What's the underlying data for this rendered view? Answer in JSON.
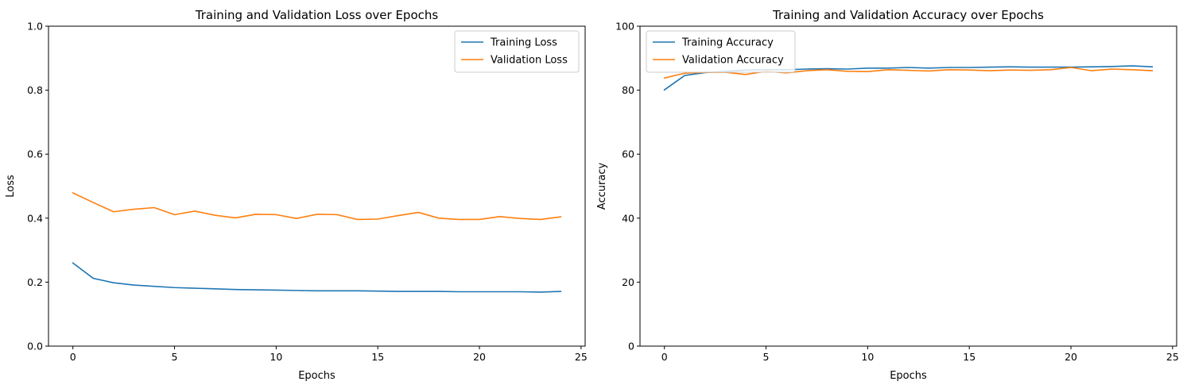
{
  "colors": {
    "series1": "#1f77b4",
    "series2": "#ff7f0e"
  },
  "chart_data": [
    {
      "type": "line",
      "title": "Training and Validation Loss over Epochs",
      "xlabel": "Epochs",
      "ylabel": "Loss",
      "xlim": [
        -1.2,
        25.2
      ],
      "ylim": [
        0,
        1
      ],
      "xticks": [
        0,
        5,
        10,
        15,
        20,
        25
      ],
      "yticks": [
        0.0,
        0.2,
        0.4,
        0.6,
        0.8,
        1.0
      ],
      "ytick_labels": [
        "0.0",
        "0.2",
        "0.4",
        "0.6",
        "0.8",
        "1.0"
      ],
      "legend": "top-right",
      "grid": false,
      "x": [
        0,
        1,
        2,
        3,
        4,
        5,
        6,
        7,
        8,
        9,
        10,
        11,
        12,
        13,
        14,
        15,
        16,
        17,
        18,
        19,
        20,
        21,
        22,
        23,
        24
      ],
      "series": [
        {
          "name": "Training Loss",
          "color": "#1f77b4",
          "values": [
            0.26,
            0.212,
            0.198,
            0.191,
            0.187,
            0.183,
            0.181,
            0.179,
            0.177,
            0.176,
            0.175,
            0.174,
            0.173,
            0.173,
            0.173,
            0.172,
            0.171,
            0.171,
            0.171,
            0.17,
            0.17,
            0.17,
            0.17,
            0.169,
            0.171
          ]
        },
        {
          "name": "Validation Loss",
          "color": "#ff7f0e",
          "values": [
            0.479,
            0.449,
            0.42,
            0.428,
            0.433,
            0.411,
            0.422,
            0.409,
            0.401,
            0.412,
            0.411,
            0.399,
            0.412,
            0.411,
            0.396,
            0.397,
            0.408,
            0.418,
            0.4,
            0.396,
            0.396,
            0.405,
            0.399,
            0.396,
            0.404
          ]
        }
      ]
    },
    {
      "type": "line",
      "title": "Training and Validation Accuracy over Epochs",
      "xlabel": "Epochs",
      "ylabel": "Accuracy",
      "xlim": [
        -1.2,
        25.2
      ],
      "ylim": [
        0,
        100
      ],
      "xticks": [
        0,
        5,
        10,
        15,
        20,
        25
      ],
      "yticks": [
        0,
        20,
        40,
        60,
        80,
        100
      ],
      "ytick_labels": [
        "0",
        "20",
        "40",
        "60",
        "80",
        "100"
      ],
      "legend": "top-left",
      "grid": false,
      "x": [
        0,
        1,
        2,
        3,
        4,
        5,
        6,
        7,
        8,
        9,
        10,
        11,
        12,
        13,
        14,
        15,
        16,
        17,
        18,
        19,
        20,
        21,
        22,
        23,
        24
      ],
      "series": [
        {
          "name": "Training Accuracy",
          "color": "#1f77b4",
          "values": [
            80.1,
            84.6,
            85.5,
            85.9,
            86.3,
            86.4,
            86.4,
            86.6,
            86.7,
            86.6,
            86.9,
            86.9,
            87.1,
            86.9,
            87.1,
            87.1,
            87.2,
            87.3,
            87.2,
            87.2,
            87.2,
            87.3,
            87.4,
            87.6,
            87.3
          ]
        },
        {
          "name": "Validation Accuracy",
          "color": "#ff7f0e",
          "values": [
            83.8,
            85.3,
            85.6,
            85.6,
            84.9,
            85.9,
            85.4,
            86.1,
            86.4,
            85.9,
            85.8,
            86.4,
            86.2,
            86.0,
            86.4,
            86.3,
            86.1,
            86.3,
            86.2,
            86.4,
            87.1,
            86.1,
            86.6,
            86.4,
            86.1
          ]
        }
      ]
    }
  ]
}
